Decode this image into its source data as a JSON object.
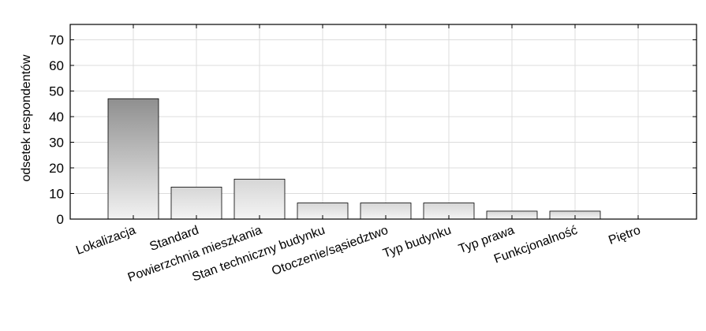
{
  "chart_data": {
    "type": "bar",
    "categories": [
      "Lokalizacja",
      "Standard",
      "Powierzchnia mieszkania",
      "Stan techniczny budynku",
      "Otoczenie/sąsiedztwo",
      "Typ budynku",
      "Typ prawa",
      "Funkcjonalność",
      "Piętro"
    ],
    "values": [
      47,
      12.5,
      15.6,
      6.3,
      6.3,
      6.3,
      3.1,
      3.1,
      0
    ],
    "title": "",
    "xlabel": "",
    "ylabel": "odsetek respondentów",
    "ylim": [
      0,
      76
    ],
    "yticks": [
      0,
      10,
      20,
      30,
      40,
      50,
      60,
      70
    ],
    "grid": true,
    "colors": {
      "bar_top": "#8f8f8f",
      "bar_bottom": "#f2f2f2",
      "grid": "#dcdcdc"
    }
  }
}
